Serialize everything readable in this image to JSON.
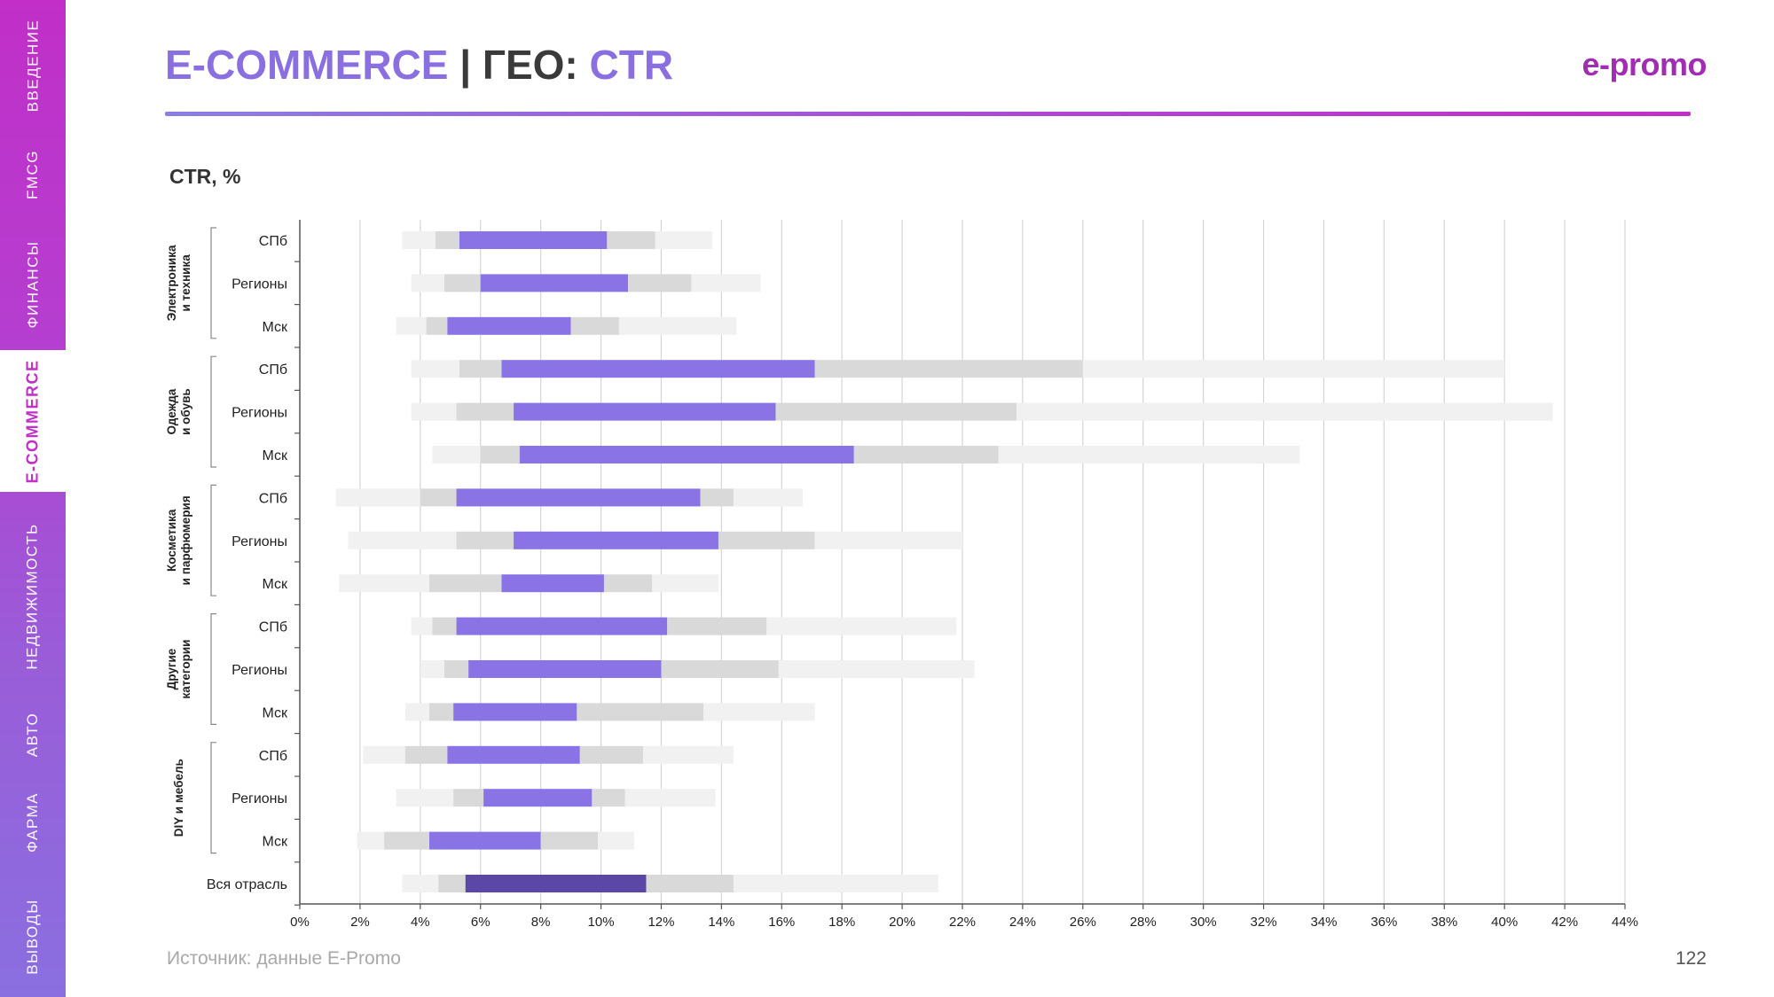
{
  "nav": {
    "items": [
      {
        "label": "ВВЕДЕНИЕ",
        "active": false
      },
      {
        "label": "FMCG",
        "active": false
      },
      {
        "label": "ФИНАНСЫ",
        "active": false
      },
      {
        "label": "E-COMMERCE",
        "active": true
      },
      {
        "label": "НЕДВИЖИМОСТЬ",
        "active": false
      },
      {
        "label": "АВТО",
        "active": false
      },
      {
        "label": "ФАРМА",
        "active": false
      },
      {
        "label": "ВЫВОДЫ",
        "active": false
      }
    ]
  },
  "header": {
    "title_part1": "E-COMMERCE",
    "title_sep": " | ГЕО: ",
    "title_part2": "CTR",
    "logo": "e-promo"
  },
  "chart_label": "CTR, %",
  "footer": {
    "source": "Источник: данные E-Promo",
    "page": "122"
  },
  "colors": {
    "accent": "#8a6fe0",
    "brand": "#a02db2",
    "bar_light": "#f1f1f1",
    "bar_mid": "#d9d9d9",
    "bar_main": "#8a73e4",
    "bar_total": "#5b48a6"
  },
  "chart_data": {
    "type": "bar",
    "orientation": "horizontal",
    "description_of_segments": "range bands: min-p25 light, p25-q1 mid, q1-q3 main, q3-p75 mid, p75-max light",
    "xlim": [
      0,
      44
    ],
    "x_ticks": [
      "0%",
      "2%",
      "4%",
      "6%",
      "8%",
      "10%",
      "12%",
      "14%",
      "16%",
      "18%",
      "20%",
      "22%",
      "24%",
      "26%",
      "28%",
      "30%",
      "32%",
      "34%",
      "36%",
      "38%",
      "40%",
      "42%",
      "44%"
    ],
    "groups": [
      {
        "name": "Электроника\nи техника",
        "rows": [
          {
            "label": "СПб",
            "values": [
              3.4,
              4.5,
              5.3,
              10.2,
              11.8,
              13.7
            ]
          },
          {
            "label": "Регионы",
            "values": [
              3.7,
              4.8,
              6.0,
              10.9,
              13.0,
              15.3
            ]
          },
          {
            "label": "Мск",
            "values": [
              3.2,
              4.2,
              4.9,
              9.0,
              10.6,
              14.5
            ]
          }
        ]
      },
      {
        "name": "Одежда\nи обувь",
        "rows": [
          {
            "label": "СПб",
            "values": [
              3.7,
              5.3,
              6.7,
              17.1,
              26.0,
              40.0
            ]
          },
          {
            "label": "Регионы",
            "values": [
              3.7,
              5.2,
              7.1,
              15.8,
              23.8,
              41.6
            ]
          },
          {
            "label": "Мск",
            "values": [
              4.4,
              6.0,
              7.3,
              18.4,
              23.2,
              33.2
            ]
          }
        ]
      },
      {
        "name": "Косметика\nи парфюмерия",
        "rows": [
          {
            "label": "СПб",
            "values": [
              1.2,
              4.0,
              5.2,
              13.3,
              14.4,
              16.7
            ]
          },
          {
            "label": "Регионы",
            "values": [
              1.6,
              5.2,
              7.1,
              13.9,
              17.1,
              22.0
            ]
          },
          {
            "label": "Мск",
            "values": [
              1.3,
              4.3,
              6.7,
              10.1,
              11.7,
              13.9
            ]
          }
        ]
      },
      {
        "name": "Другие\nкатегории",
        "rows": [
          {
            "label": "СПб",
            "values": [
              3.7,
              4.4,
              5.2,
              12.2,
              15.5,
              21.8
            ]
          },
          {
            "label": "Регионы",
            "values": [
              4.0,
              4.8,
              5.6,
              12.0,
              15.9,
              22.4
            ]
          },
          {
            "label": "Мск",
            "values": [
              3.5,
              4.3,
              5.1,
              9.2,
              13.4,
              17.1
            ]
          }
        ]
      },
      {
        "name": "DIY и мебель",
        "rows": [
          {
            "label": "СПб",
            "values": [
              2.1,
              3.5,
              4.9,
              9.3,
              11.4,
              14.4
            ]
          },
          {
            "label": "Регионы",
            "values": [
              3.2,
              5.1,
              6.1,
              9.7,
              10.8,
              13.8
            ]
          },
          {
            "label": "Мск",
            "values": [
              1.9,
              2.8,
              4.3,
              8.0,
              9.9,
              11.1
            ]
          }
        ]
      }
    ],
    "total": {
      "label": "Вся отрасль",
      "values": [
        3.4,
        4.6,
        5.5,
        11.5,
        14.4,
        21.2
      ]
    }
  }
}
